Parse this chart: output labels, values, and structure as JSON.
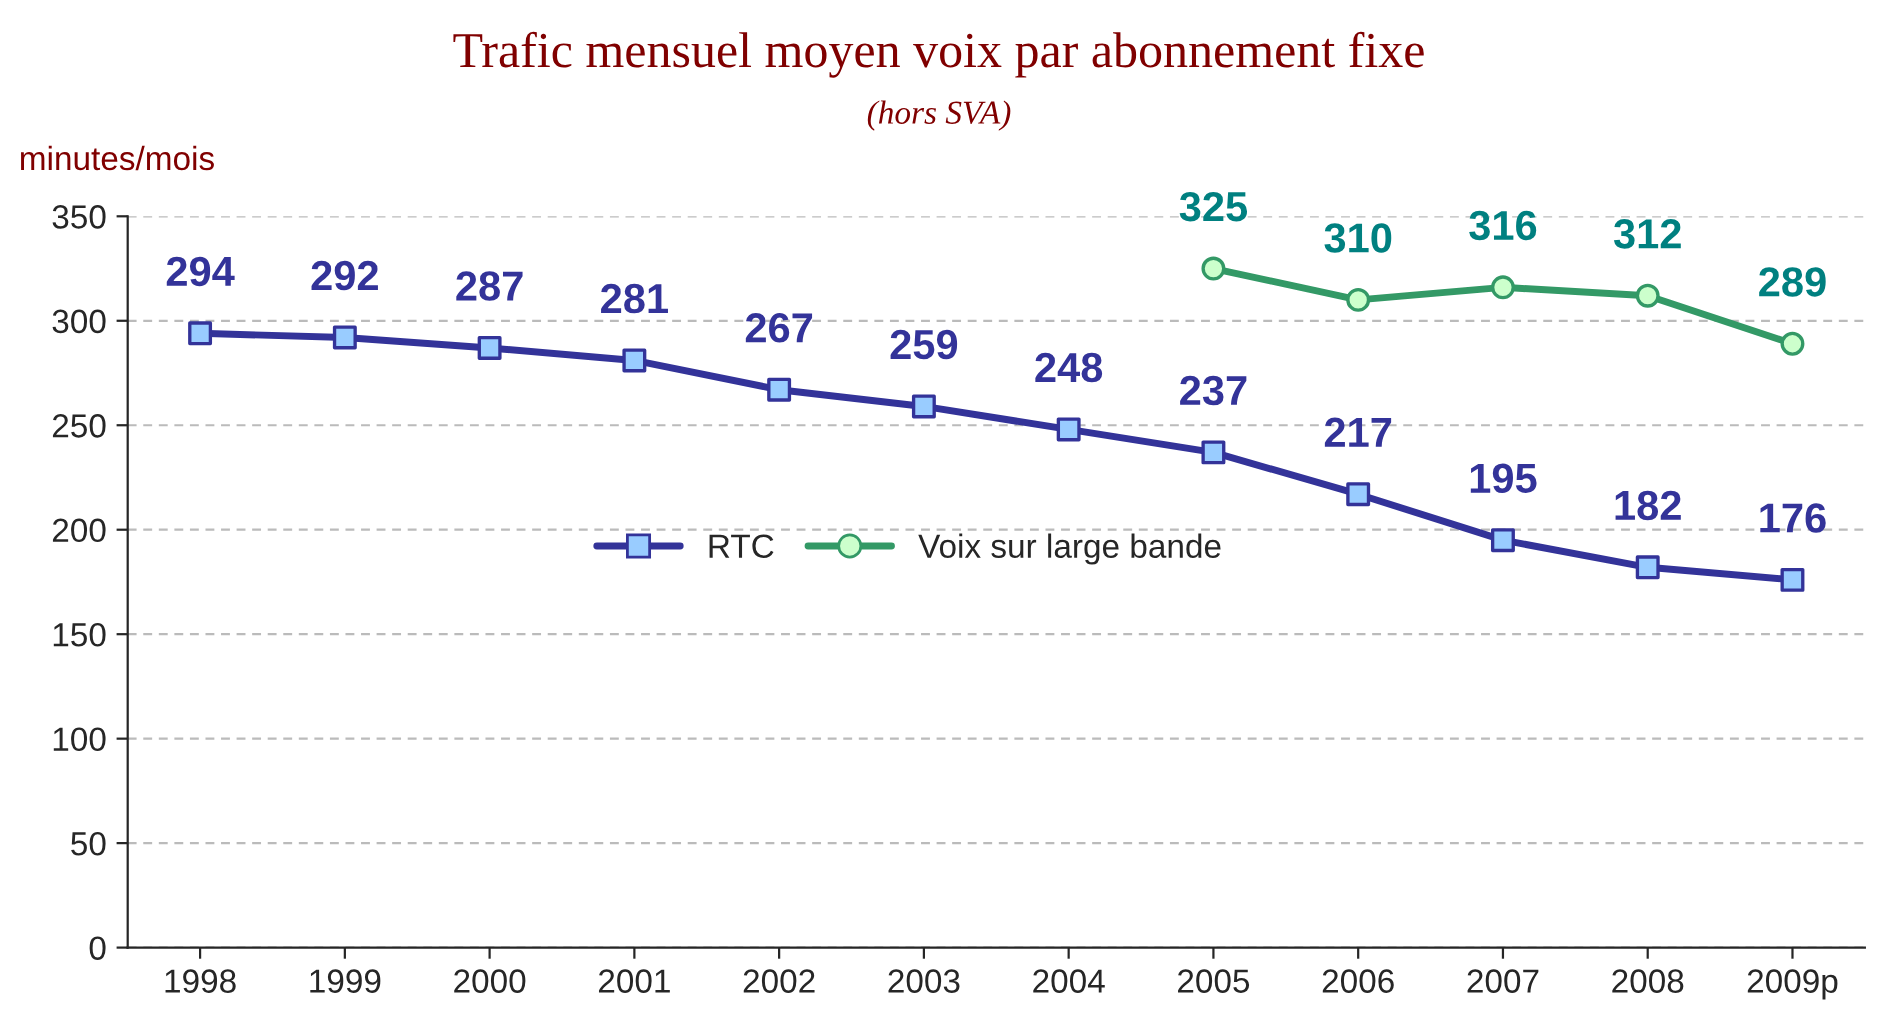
{
  "chart_data": {
    "type": "line",
    "title": "Trafic mensuel moyen voix par abonnement fixe",
    "subtitle": "(hors SVA)",
    "ylabel": "minutes/mois",
    "categories": [
      "1998",
      "1999",
      "2000",
      "2001",
      "2002",
      "2003",
      "2004",
      "2005",
      "2006",
      "2007",
      "2008",
      "2009p"
    ],
    "series": [
      {
        "name": "RTC",
        "color": "#333399",
        "marker": "square",
        "values": [
          294,
          292,
          287,
          281,
          267,
          259,
          248,
          237,
          217,
          195,
          182,
          176
        ]
      },
      {
        "name": "Voix sur large bande",
        "color": "#339966",
        "marker": "circle",
        "values": [
          null,
          null,
          null,
          null,
          null,
          null,
          null,
          325,
          310,
          316,
          312,
          289
        ]
      }
    ],
    "ylim": [
      0,
      350
    ],
    "yticks": [
      0,
      50,
      100,
      150,
      200,
      250,
      300,
      350
    ],
    "grid": "y",
    "legend": "center",
    "data_labels": true,
    "line_style": "solid"
  }
}
